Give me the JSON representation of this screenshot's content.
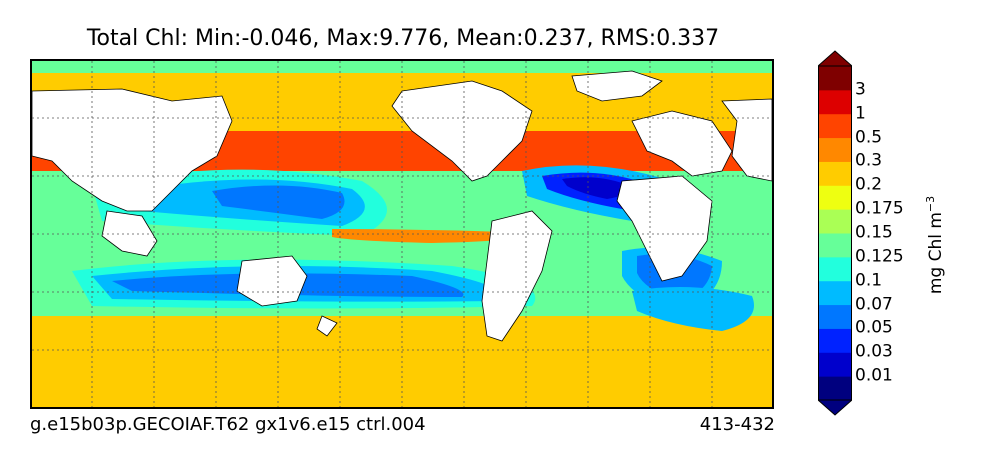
{
  "title": "Total Chl: Min:-0.046, Max:9.776, Mean:0.237, RMS:0.337",
  "footer_left": "g.e15b03p.GECOIAF.T62 gx1v6.e15 ctrl.004",
  "footer_right": "413-432",
  "colorbar": {
    "unit_base": "mg Chl m",
    "unit_exp": "−3",
    "labels": [
      "0.01",
      "0.03",
      "0.05",
      "0.07",
      "0.1",
      "0.125",
      "0.15",
      "0.175",
      "0.2",
      "0.3",
      "0.5",
      "1",
      "3"
    ],
    "colors": [
      "#00007f",
      "#0000cc",
      "#0022ff",
      "#0077ff",
      "#00bbff",
      "#22ffdd",
      "#66ff99",
      "#aaff55",
      "#eeff11",
      "#ffcc00",
      "#ff8800",
      "#ff4400",
      "#dd0000",
      "#7f0000"
    ]
  },
  "colors": {
    "land": "#ffffff",
    "coastline": "#000000",
    "grid": "#555555"
  }
}
